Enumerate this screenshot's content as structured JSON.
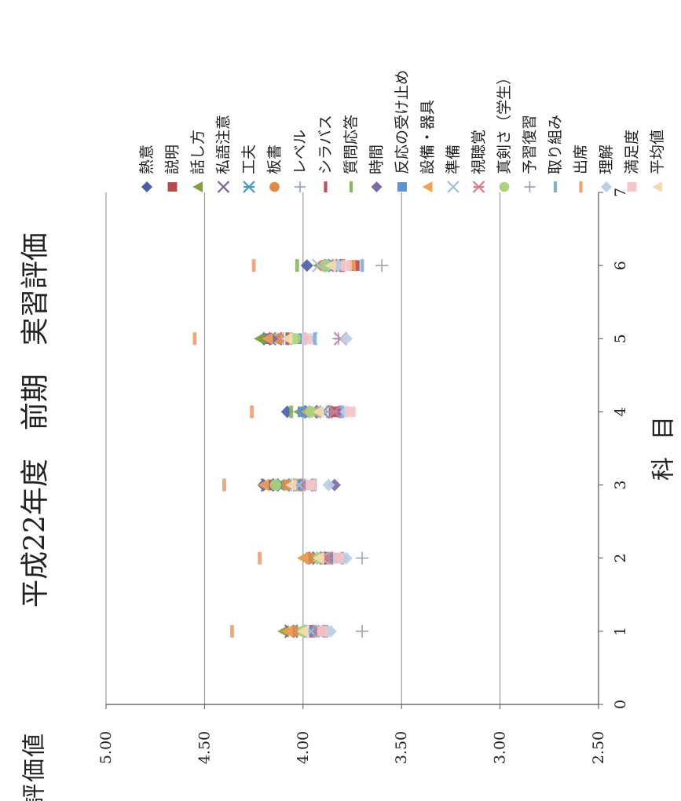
{
  "chart_data": {
    "type": "scatter",
    "title": "平成22年度　前期　実習評価",
    "xlabel": "科目",
    "ylabel": "評価値",
    "xlim": [
      0,
      7
    ],
    "ylim": [
      2.5,
      5.0
    ],
    "x_ticks": [
      "0",
      "1",
      "2",
      "3",
      "4",
      "5",
      "6",
      "7"
    ],
    "y_ticks": [
      "5.00",
      "4.50",
      "4.00",
      "3.50",
      "3.00",
      "2.50"
    ],
    "grid": "major y lines",
    "legend_position": "right",
    "series": [
      {
        "name": "熱意",
        "color": "#4a5fa8",
        "marker": "diamond",
        "values": [
          [
            1,
            3.92
          ],
          [
            2,
            3.98
          ],
          [
            3,
            4.2
          ],
          [
            4,
            4.08
          ],
          [
            5,
            4.2
          ],
          [
            6,
            3.98
          ]
        ]
      },
      {
        "name": "説明",
        "color": "#b84a4a",
        "marker": "square",
        "values": [
          [
            1,
            3.9
          ],
          [
            2,
            3.82
          ],
          [
            3,
            4.15
          ],
          [
            4,
            3.84
          ],
          [
            5,
            4.18
          ],
          [
            6,
            3.74
          ]
        ]
      },
      {
        "name": "話し方",
        "color": "#7fa23a",
        "marker": "triangle",
        "values": [
          [
            1,
            4.1
          ],
          [
            2,
            4.0
          ],
          [
            3,
            4.12
          ],
          [
            4,
            4.02
          ],
          [
            5,
            4.22
          ],
          [
            6,
            3.92
          ]
        ]
      },
      {
        "name": "私語注意",
        "color": "#7a5f9e",
        "marker": "x",
        "values": [
          [
            1,
            4.06
          ],
          [
            2,
            3.92
          ],
          [
            3,
            4.18
          ],
          [
            4,
            3.96
          ],
          [
            5,
            4.14
          ],
          [
            6,
            3.86
          ]
        ]
      },
      {
        "name": "工夫",
        "color": "#3f9ac8",
        "marker": "asterisk",
        "values": [
          [
            1,
            4.02
          ],
          [
            2,
            3.94
          ],
          [
            3,
            4.1
          ],
          [
            4,
            3.9
          ],
          [
            5,
            4.17
          ],
          [
            6,
            3.84
          ]
        ]
      },
      {
        "name": "板書",
        "color": "#e08a4a",
        "marker": "circle",
        "values": [
          [
            1,
            4.04
          ],
          [
            2,
            3.96
          ],
          [
            3,
            4.08
          ],
          [
            4,
            3.92
          ],
          [
            5,
            4.12
          ],
          [
            6,
            3.9
          ]
        ]
      },
      {
        "name": "レベル",
        "color": "#8f9fd6",
        "marker": "plus",
        "values": [
          [
            1,
            3.98
          ],
          [
            2,
            3.9
          ],
          [
            3,
            4.06
          ],
          [
            4,
            3.88
          ],
          [
            5,
            4.1
          ],
          [
            6,
            3.88
          ]
        ]
      },
      {
        "name": "シラバス",
        "color": "#b9535f",
        "marker": "dash",
        "values": [
          [
            1,
            3.96
          ],
          [
            2,
            3.88
          ],
          [
            3,
            4.04
          ],
          [
            4,
            3.86
          ],
          [
            5,
            4.08
          ],
          [
            6,
            3.8
          ]
        ]
      },
      {
        "name": "質問応答",
        "color": "#8ab65a",
        "marker": "dash",
        "values": [
          [
            1,
            3.94
          ],
          [
            2,
            3.86
          ],
          [
            3,
            4.02
          ],
          [
            4,
            4.06
          ],
          [
            5,
            4.06
          ],
          [
            6,
            4.03
          ]
        ]
      },
      {
        "name": "時間",
        "color": "#7b6aa8",
        "marker": "diamond",
        "values": [
          [
            1,
            3.9
          ],
          [
            2,
            3.8
          ],
          [
            3,
            3.84
          ],
          [
            4,
            3.82
          ],
          [
            5,
            4.16
          ],
          [
            6,
            3.82
          ]
        ]
      },
      {
        "name": "反応の受け止め",
        "color": "#5b92cf",
        "marker": "square",
        "values": [
          [
            1,
            3.94
          ],
          [
            2,
            3.84
          ],
          [
            3,
            4.0
          ],
          [
            4,
            4.0
          ],
          [
            5,
            4.0
          ],
          [
            6,
            3.86
          ]
        ]
      },
      {
        "name": "設備・器具",
        "color": "#f0a050",
        "marker": "triangle",
        "values": [
          [
            1,
            4.08
          ],
          [
            2,
            4.0
          ],
          [
            3,
            4.2
          ],
          [
            4,
            3.98
          ],
          [
            5,
            4.18
          ],
          [
            6,
            3.76
          ]
        ]
      },
      {
        "name": "準備",
        "color": "#9fc0de",
        "marker": "x",
        "values": [
          [
            1,
            3.96
          ],
          [
            2,
            3.9
          ],
          [
            3,
            4.02
          ],
          [
            4,
            3.94
          ],
          [
            5,
            3.96
          ],
          [
            6,
            3.92
          ]
        ]
      },
      {
        "name": "視聴覚",
        "color": "#e07a8a",
        "marker": "asterisk",
        "values": [
          [
            1,
            3.92
          ],
          [
            2,
            3.88
          ],
          [
            3,
            3.98
          ],
          [
            4,
            3.84
          ],
          [
            5,
            3.81
          ],
          [
            6,
            3.82
          ]
        ]
      },
      {
        "name": "真剣さ（学生）",
        "color": "#a9d47a",
        "marker": "circle",
        "values": [
          [
            1,
            4.0
          ],
          [
            2,
            3.92
          ],
          [
            3,
            4.14
          ],
          [
            4,
            3.96
          ],
          [
            5,
            4.04
          ],
          [
            6,
            3.88
          ]
        ]
      },
      {
        "name": "予習復習",
        "color": "#9a9ab8",
        "marker": "plus",
        "values": [
          [
            1,
            3.7
          ],
          [
            2,
            3.7
          ],
          [
            3,
            3.96
          ],
          [
            4,
            3.86
          ],
          [
            5,
            3.82
          ],
          [
            6,
            3.6
          ]
        ]
      },
      {
        "name": "取り組み",
        "color": "#7fb0dc",
        "marker": "dash",
        "values": [
          [
            1,
            3.88
          ],
          [
            2,
            3.8
          ],
          [
            3,
            3.94
          ],
          [
            4,
            3.8
          ],
          [
            5,
            3.94
          ],
          [
            6,
            3.7
          ]
        ]
      },
      {
        "name": "出席",
        "color": "#f0a070",
        "marker": "dash",
        "values": [
          [
            1,
            4.36
          ],
          [
            2,
            4.22
          ],
          [
            3,
            4.4
          ],
          [
            4,
            4.26
          ],
          [
            5,
            4.55
          ],
          [
            6,
            4.25
          ]
        ]
      },
      {
        "name": "理解",
        "color": "#b8cfe8",
        "marker": "diamond",
        "values": [
          [
            1,
            3.86
          ],
          [
            2,
            3.78
          ],
          [
            3,
            3.87
          ],
          [
            4,
            3.78
          ],
          [
            5,
            3.78
          ],
          [
            6,
            3.82
          ]
        ]
      },
      {
        "name": "満足度",
        "color": "#f5c5c8",
        "marker": "square",
        "values": [
          [
            1,
            3.9
          ],
          [
            2,
            3.82
          ],
          [
            3,
            3.96
          ],
          [
            4,
            3.76
          ],
          [
            5,
            3.98
          ],
          [
            6,
            3.78
          ]
        ]
      },
      {
        "name": "平均値",
        "color": "#f5dcb0",
        "marker": "triangle",
        "values": [
          [
            1,
            4.0
          ],
          [
            2,
            3.92
          ],
          [
            3,
            4.06
          ],
          [
            4,
            3.92
          ],
          [
            5,
            4.08
          ],
          [
            6,
            3.86
          ]
        ]
      }
    ]
  }
}
